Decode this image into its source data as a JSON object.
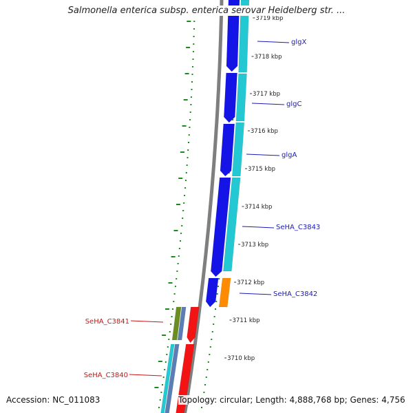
{
  "title": "Salmonella enterica subsp. enterica serovar Heidelberg str. ...",
  "footer": {
    "accession": "Accession: NC_011083",
    "summary": "Topology: circular; Length: 4,888,768 bp; Genes: 4,756"
  },
  "colors": {
    "backbone": "#7f7f7f",
    "forward_cds": "#1414e6",
    "forward_cds_dark": "#0a0a90",
    "reverse_cds": "#24c8d2",
    "reverse_cds_light": "#7fe6ee",
    "orange_cds": "#ff8c00",
    "red_cds": "#f21414",
    "olive_cds": "#6b8e23",
    "steelblue_cds": "#5b7fb5",
    "dotted_track": "#1a8a1a",
    "label_right": "#1a1ab4",
    "label_left": "#c81414"
  },
  "ruler": {
    "unit": "kbp",
    "ticks": [
      "3719 kbp",
      "3718 kbp",
      "3717 kbp",
      "3716 kbp",
      "3715 kbp",
      "3714 kbp",
      "3713 kbp",
      "3712 kbp",
      "3711 kbp",
      "3710 kbp"
    ]
  },
  "gene_labels_right": [
    "glgX",
    "glgC",
    "glgA",
    "SeHA_C3843",
    "SeHA_C3842"
  ],
  "gene_labels_left": [
    "SeHA_C3841",
    "SeHA_C3840"
  ]
}
